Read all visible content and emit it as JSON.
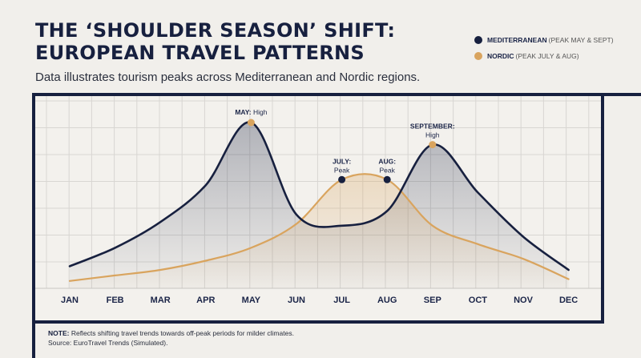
{
  "header": {
    "title_line1": "THE ‘SHOULDER SEASON’ SHIFT:",
    "title_line2": "EUROPEAN TRAVEL PATTERNS",
    "subtitle": "Data illustrates tourism peaks across Mediterranean and Nordic regions."
  },
  "legend": [
    {
      "name": "MEDITERRANEAN",
      "detail": "(PEAK MAY & SEPT)",
      "color": "#17203f"
    },
    {
      "name": "NORDIC",
      "detail": "(PEAK JULY & AUG)",
      "color": "#d9a45e"
    }
  ],
  "note": {
    "label": "NOTE:",
    "text": "Reflects shifting travel trends towards off-peak periods for milder climates.",
    "source": "Source: EuroTravel Trends (Simulated)."
  },
  "chart_data": {
    "type": "line",
    "categories": [
      "JAN",
      "FEB",
      "MAR",
      "APR",
      "MAY",
      "JUN",
      "JUL",
      "AUG",
      "SEP",
      "OCT",
      "NOV",
      "DEC"
    ],
    "ylim": [
      0,
      100
    ],
    "grid": true,
    "legend_position": "top-right",
    "series": [
      {
        "name": "MEDITERRANEAN",
        "color": "#17203f",
        "values": [
          12,
          22,
          36,
          56,
          90,
          40,
          34,
          42,
          78,
          52,
          28,
          10
        ]
      },
      {
        "name": "NORDIC",
        "color": "#d9a45e",
        "values": [
          4,
          7,
          10,
          15,
          22,
          35,
          59,
          59,
          34,
          24,
          16,
          5
        ]
      }
    ],
    "annotations": [
      {
        "series": 0,
        "index": 4,
        "label": "MAY:",
        "sub": "High",
        "inline": true
      },
      {
        "series": 1,
        "index": 6,
        "label": "JULY:",
        "sub": "Peak"
      },
      {
        "series": 1,
        "index": 7,
        "label": "AUG:",
        "sub": "Peak"
      },
      {
        "series": 0,
        "index": 8,
        "label": "SEPTEMBER:",
        "sub": "High"
      }
    ]
  }
}
